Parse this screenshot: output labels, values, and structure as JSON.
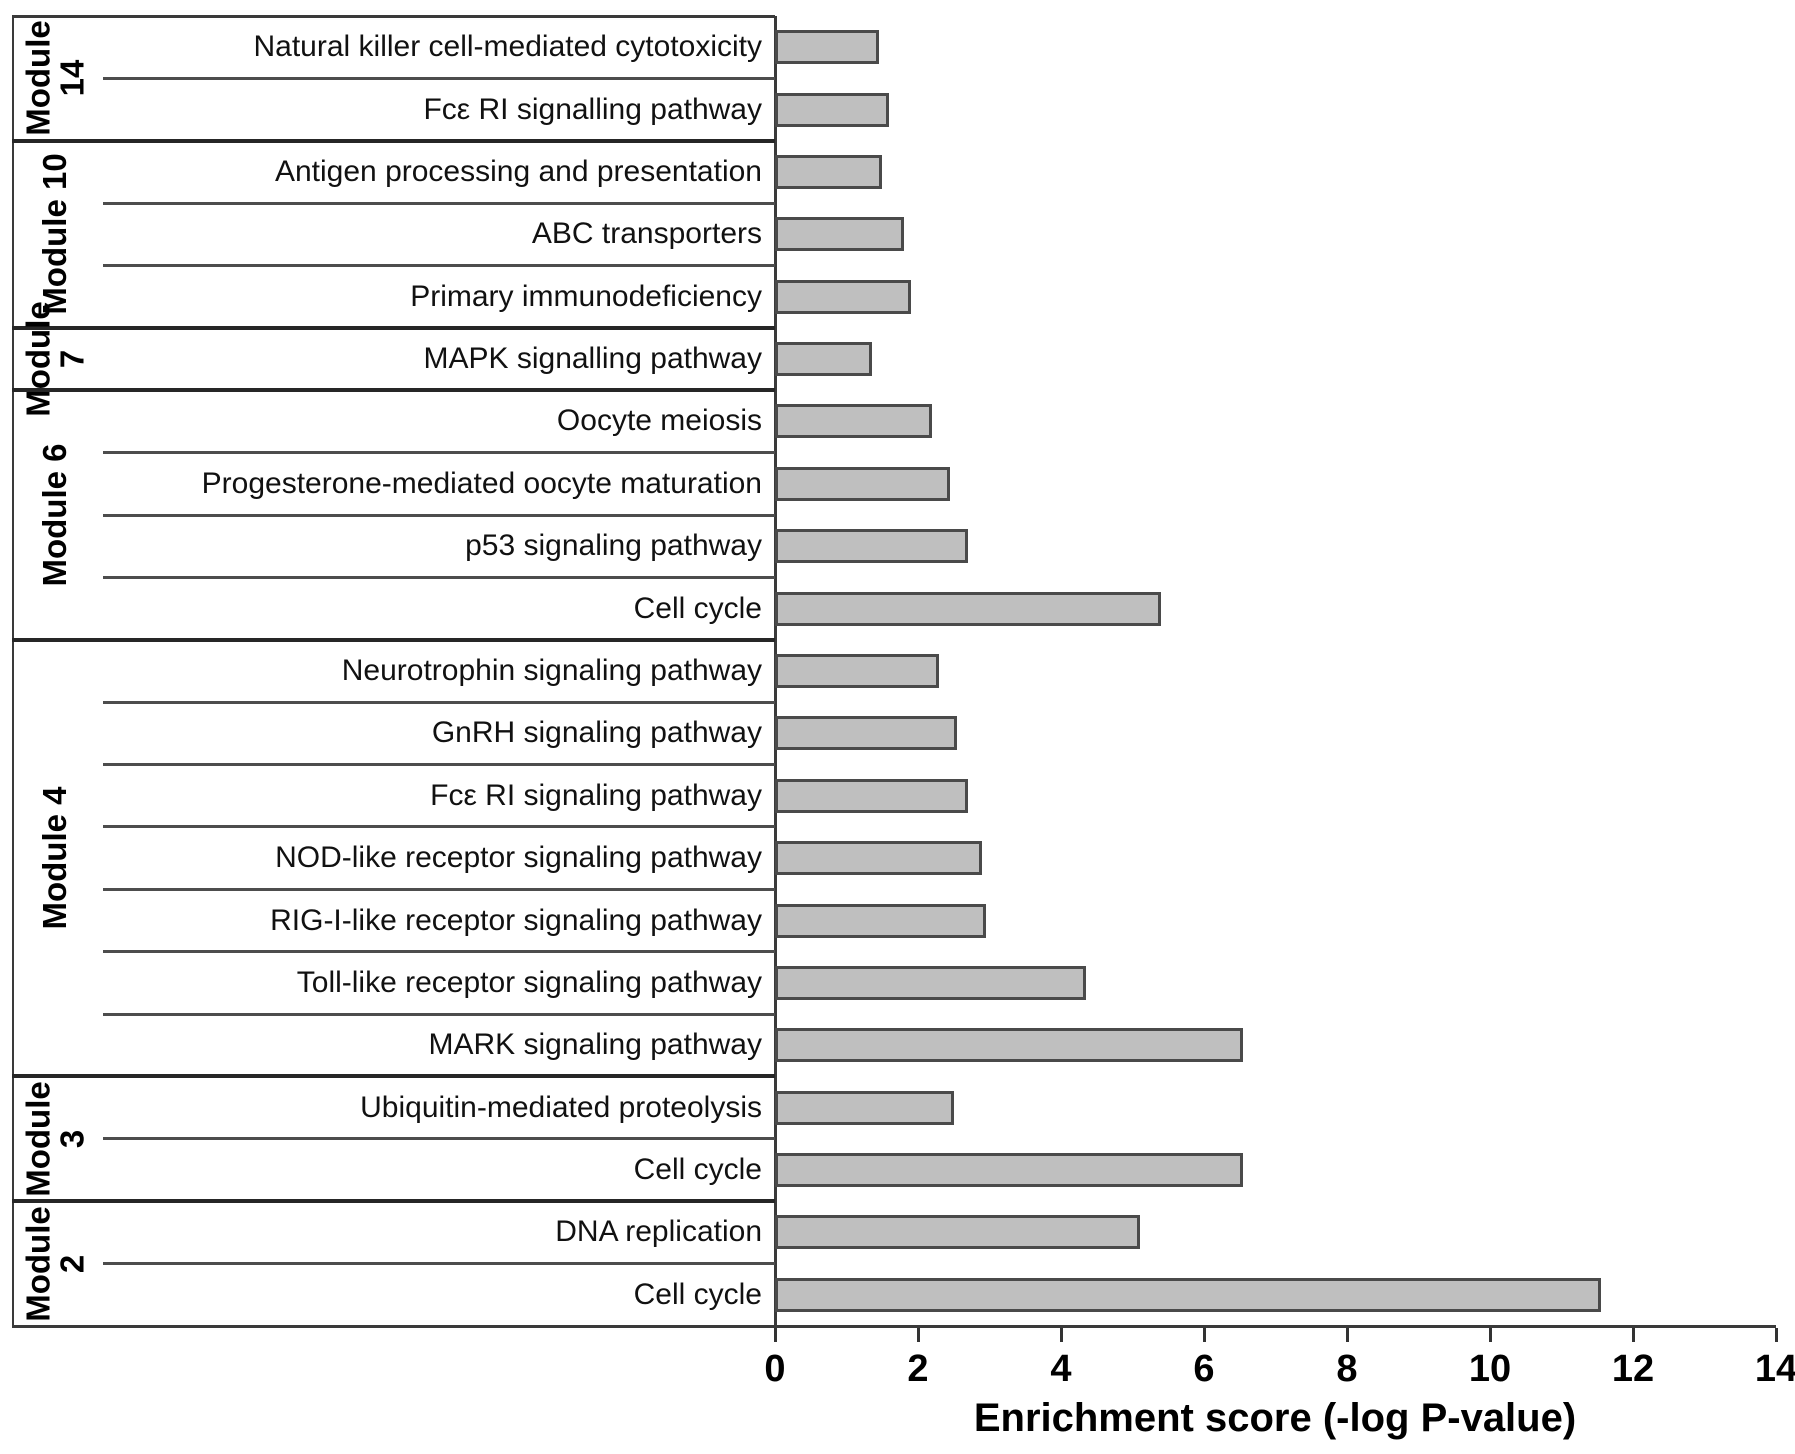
{
  "chart_data": {
    "type": "bar",
    "orientation": "horizontal",
    "xlabel": "Enrichment score (-log P-value)",
    "xlim": [
      0,
      14
    ],
    "xticks": [
      0,
      2,
      4,
      6,
      8,
      10,
      12,
      14
    ],
    "grid": false,
    "legend": false,
    "bar_color": "#bfbfbf",
    "bar_border_color": "#4a4a4a",
    "axis_color": "#333333",
    "text_color": "#000000",
    "groups": [
      {
        "module": "Module 14",
        "items": [
          {
            "label": "Natural killer cell-mediated cytotoxicity",
            "value": 1.45
          },
          {
            "label": "Fcε RI signalling pathway",
            "value": 1.6
          }
        ]
      },
      {
        "module": "Module 10",
        "items": [
          {
            "label": "Antigen processing and presentation",
            "value": 1.5
          },
          {
            "label": "ABC transporters",
            "value": 1.8
          },
          {
            "label": "Primary immunodeficiency",
            "value": 1.9
          }
        ]
      },
      {
        "module": "Module 7",
        "items": [
          {
            "label": "MAPK signalling pathway",
            "value": 1.35
          }
        ]
      },
      {
        "module": "Module 6",
        "items": [
          {
            "label": "Oocyte meiosis",
            "value": 2.2
          },
          {
            "label": "Progesterone-mediated oocyte maturation",
            "value": 2.45
          },
          {
            "label": "p53 signaling pathway",
            "value": 2.7
          },
          {
            "label": "Cell cycle",
            "value": 5.4
          }
        ]
      },
      {
        "module": "Module 4",
        "items": [
          {
            "label": "Neurotrophin signaling pathway",
            "value": 2.3
          },
          {
            "label": "GnRH signaling pathway",
            "value": 2.55
          },
          {
            "label": "Fcε RI signaling pathway",
            "value": 2.7
          },
          {
            "label": "NOD-like receptor signaling pathway",
            "value": 2.9
          },
          {
            "label": "RIG-I-like receptor signaling pathway",
            "value": 2.95
          },
          {
            "label": "Toll-like receptor signaling pathway",
            "value": 4.35
          },
          {
            "label": "MARK signaling pathway",
            "value": 6.55
          }
        ]
      },
      {
        "module": "Module 3",
        "items": [
          {
            "label": "Ubiquitin-mediated proteolysis",
            "value": 2.5
          },
          {
            "label": "Cell cycle",
            "value": 6.55
          }
        ]
      },
      {
        "module": "Module 2",
        "items": [
          {
            "label": "DNA replication",
            "value": 5.1
          },
          {
            "label": "Cell cycle",
            "value": 11.55
          }
        ]
      }
    ]
  }
}
